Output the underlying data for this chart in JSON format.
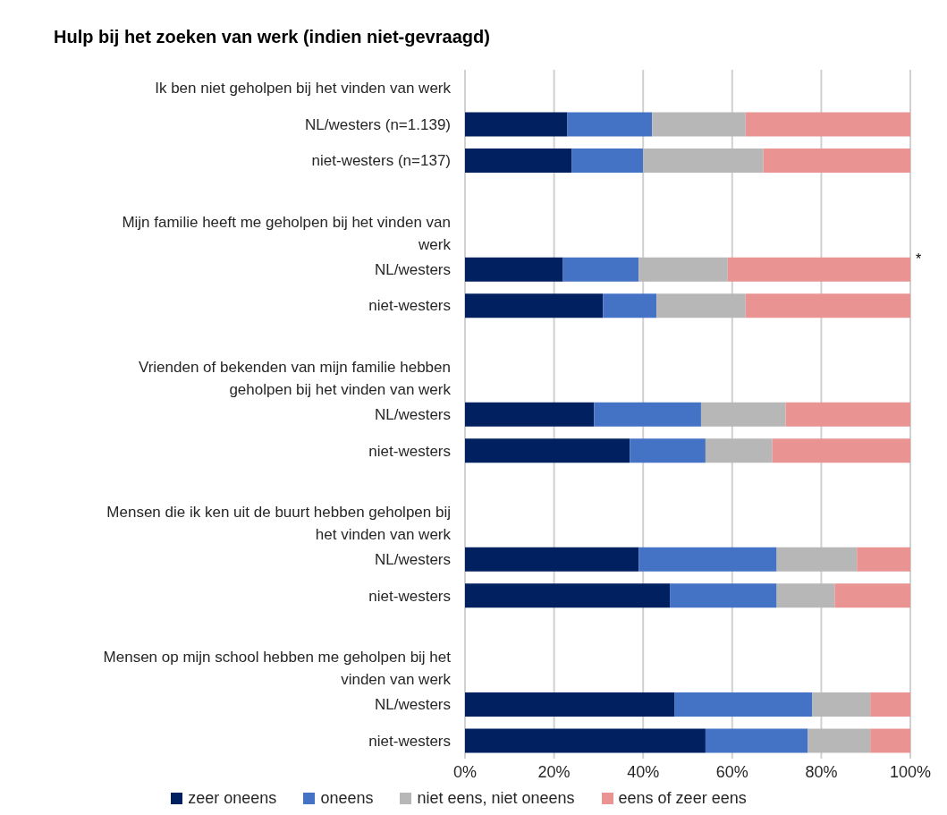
{
  "chart_data": {
    "type": "bar",
    "orientation": "horizontal",
    "stacked": true,
    "title": "Hulp bij het zoeken van werk (indien niet-gevraagd)",
    "categories": [
      "Ik ben niet geholpen bij het vinden van werk",
      "NL/westers (n=1.139)",
      "niet-westers (n=137)",
      null,
      "Mijn familie heeft me geholpen bij het vinden van\nwerk",
      "NL/westers",
      "niet-westers",
      null,
      "Vrienden of bekenden van mijn familie hebben\ngeholpen bij het vinden van werk",
      "NL/westers",
      "niet-westers",
      null,
      "Mensen die ik ken uit de buurt hebben geholpen bij\nhet vinden van werk",
      "NL/westers",
      "niet-westers",
      null,
      "Mensen op mijn school hebben me geholpen bij het\nvinden van werk",
      "NL/westers",
      "niet-westers"
    ],
    "series": [
      {
        "name": "zeer oneens",
        "color": "#002060",
        "values": [
          null,
          23,
          24,
          null,
          null,
          22,
          31,
          null,
          null,
          29,
          37,
          null,
          null,
          39,
          46,
          null,
          null,
          47,
          54
        ]
      },
      {
        "name": "oneens",
        "color": "#4472c4",
        "values": [
          null,
          19,
          16,
          null,
          null,
          17,
          12,
          null,
          null,
          24,
          17,
          null,
          null,
          31,
          24,
          null,
          null,
          31,
          23
        ]
      },
      {
        "name": "niet eens, niet oneens",
        "color": "#b7b7b7",
        "values": [
          null,
          21,
          27,
          null,
          null,
          20,
          20,
          null,
          null,
          19,
          15,
          null,
          null,
          18,
          13,
          null,
          null,
          13,
          14
        ]
      },
      {
        "name": "eens of zeer eens",
        "color": "#ea9393",
        "values": [
          null,
          37,
          33,
          null,
          null,
          41,
          37,
          null,
          null,
          28,
          31,
          null,
          null,
          12,
          17,
          null,
          null,
          9,
          9
        ]
      }
    ],
    "xlim": [
      0,
      100
    ],
    "xticks": [
      {
        "value": 0,
        "label": "0%"
      },
      {
        "value": 20,
        "label": "20%"
      },
      {
        "value": 40,
        "label": "40%"
      },
      {
        "value": 60,
        "label": "60%"
      },
      {
        "value": 80,
        "label": "80%"
      },
      {
        "value": 100,
        "label": "100%"
      }
    ],
    "grid": "x",
    "legend": "bottom",
    "annotations": [
      "*"
    ]
  }
}
